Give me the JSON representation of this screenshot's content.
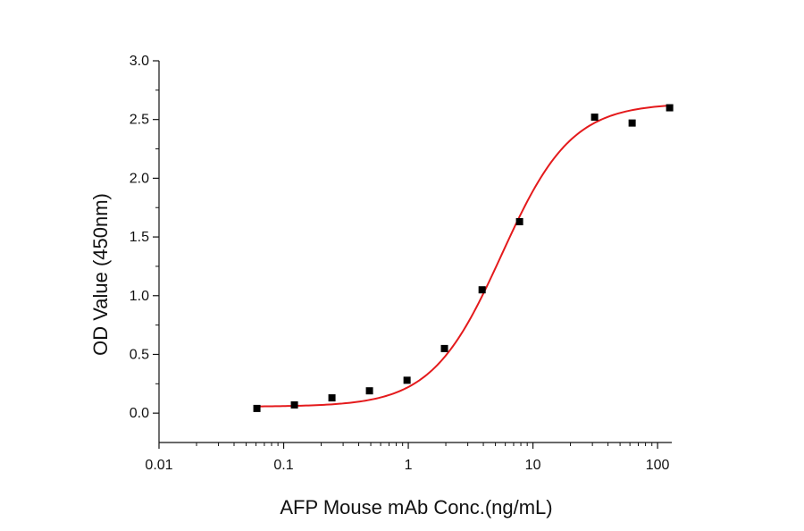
{
  "chart_data": {
    "type": "scatter",
    "title": "",
    "xlabel": "AFP Mouse mAb Conc.(ng/mL)",
    "ylabel": "OD Value (450nm)",
    "x_scale": "log",
    "xlim": [
      0.01,
      130
    ],
    "ylim": [
      -0.25,
      3.0
    ],
    "x_ticks": [
      0.01,
      0.1,
      1,
      10,
      100
    ],
    "x_tick_labels": [
      "0.01",
      "0.1",
      "1",
      "10",
      "100"
    ],
    "y_ticks": [
      0.0,
      0.5,
      1.0,
      1.5,
      2.0,
      2.5,
      3.0
    ],
    "y_tick_labels": [
      "0.0",
      "0.5",
      "1.0",
      "1.5",
      "2.0",
      "2.5",
      "3.0"
    ],
    "grid": false,
    "legend": "none",
    "series": [
      {
        "marker": "square",
        "color": "#000000",
        "x": [
          0.061,
          0.122,
          0.244,
          0.488,
          0.977,
          1.95,
          3.91,
          7.81,
          31.25,
          62.5,
          125
        ],
        "y": [
          0.04,
          0.07,
          0.13,
          0.19,
          0.28,
          0.55,
          1.05,
          1.63,
          2.52,
          2.47,
          2.6
        ]
      }
    ],
    "fit": {
      "kind": "4PL",
      "color": "#e41a1c",
      "bottom": 0.055,
      "top": 2.64,
      "ec50": 5.6,
      "hill": 1.55
    }
  }
}
